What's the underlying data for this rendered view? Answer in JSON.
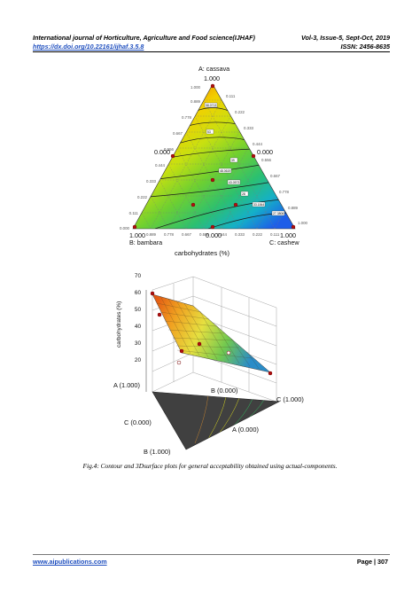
{
  "header": {
    "journal": "International journal of Horticulture, Agriculture and Food science(IJHAF)",
    "volume": "Vol-3, Issue-5, Sept-Oct, 2019",
    "doi": "https://dx.doi.org/10.22161/ijhaf.3.5.8",
    "issn": "ISSN: 2456-8635"
  },
  "ternary": {
    "vertex_a": "A: cassava",
    "vertex_b": "B: bambara",
    "vertex_c": "C: cashew",
    "top_value": "1.000",
    "left_mid": "0.000",
    "right_mid": "0.000",
    "bottom_mid": "0.000",
    "left_corner": "1.000",
    "right_corner": "1.000",
    "xlabel": "carbohydrates (%)",
    "left_ticks": [
      "0.889",
      "0.778",
      "0.667",
      "0.556",
      "0.444",
      "0.333",
      "0.222",
      "0.111"
    ],
    "right_ticks": [
      "0.111",
      "0.222",
      "0.333",
      "0.444",
      "0.556",
      "0.667",
      "0.778",
      "0.889"
    ],
    "bottom_ticks": [
      "0.889",
      "0.778",
      "0.667",
      "0.556",
      "0.444",
      "0.333",
      "0.222",
      "0.111"
    ],
    "corner_ticks": {
      "left_top": "1.000",
      "left_bottom": "0.000",
      "right_bottom": "1.000"
    },
    "contour_labels": [
      "58.0713",
      "53",
      "48.0619",
      "43.0573",
      "39",
      "33.1844",
      "28",
      "27.3806"
    ]
  },
  "surface": {
    "zlabel": "carbohydrates (%)",
    "z_ticks": [
      "70",
      "60",
      "50",
      "40",
      "30",
      "20"
    ],
    "label_a": "A (1.000)",
    "label_b_top": "B (0.000)",
    "label_c_right": "C (1.000)",
    "label_c_left": "C (0.000)",
    "label_a_bottom": "A (0.000)",
    "label_b_bottom": "B (1.000)"
  },
  "chart_data": [
    {
      "type": "heatmap",
      "title": "",
      "xlabel": "carbohydrates (%)",
      "axes": [
        "A: cassava",
        "B: bambara",
        "C: cashew"
      ],
      "contour_levels": [
        58.0713,
        53,
        48.0619,
        43.0573,
        39,
        33.1844,
        28,
        27.3806
      ],
      "ternary_ticks": [
        0,
        0.111,
        0.222,
        0.333,
        0.444,
        0.556,
        0.667,
        0.778,
        0.889,
        1.0
      ],
      "colors": [
        "#e03010",
        "#f0a000",
        "#f0e000",
        "#90d020",
        "#30c060",
        "#10b0c0",
        "#2060e0"
      ]
    },
    {
      "type": "area",
      "title": "",
      "zlabel": "carbohydrates (%)",
      "zlim": [
        20,
        70
      ],
      "z_ticks": [
        70,
        60,
        50,
        40,
        30,
        20
      ],
      "vertex_labels": [
        "A (1.000)",
        "B (0.000)",
        "C (1.000)",
        "C (0.000)",
        "A (0.000)",
        "B (1.000)"
      ]
    }
  ],
  "caption": "Fig.4: Contour and 3Dsurface plots for general acceptability obtained using actual-components.",
  "footer": {
    "site": "www.aipublications.com",
    "page": "Page | 307"
  }
}
